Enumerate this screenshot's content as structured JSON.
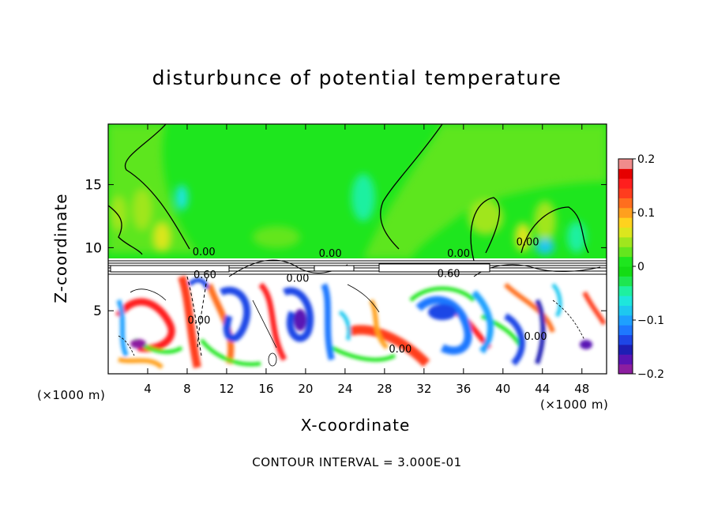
{
  "chart_data": {
    "type": "heatmap",
    "title": "disturbunce of potential temperature",
    "xlabel": "X-coordinate",
    "ylabel": "Z-coordinate",
    "x_unit_left": "(×1000 m)",
    "x_unit_right": "(×1000 m)",
    "xlim": [
      0,
      50.5
    ],
    "ylim": [
      0,
      19.8
    ],
    "x_ticks": [
      4,
      8,
      12,
      16,
      20,
      24,
      28,
      32,
      36,
      40,
      44,
      48
    ],
    "y_ticks": [
      5,
      10,
      15
    ],
    "colorbar": {
      "min": -0.2,
      "max": 0.2,
      "tick_values": [
        0.2,
        0.1,
        0,
        -0.1,
        -0.2
      ],
      "tick_labels": [
        "0.2",
        "0.1",
        "0",
        "−0.1",
        "−0.2"
      ],
      "colors": [
        "#8c1ea0",
        "#5a14b4",
        "#1e1eb4",
        "#1e46e6",
        "#1e78ff",
        "#1ea0ff",
        "#1ec8f0",
        "#1ee6dc",
        "#1ef0a0",
        "#1ee650",
        "#14dc14",
        "#1ee61e",
        "#64e61e",
        "#a0e61e",
        "#dce61e",
        "#ffd21e",
        "#ffa01e",
        "#ff6e1e",
        "#ff3c1e",
        "#ff1e1e",
        "#e60000",
        "#f08c8c"
      ]
    },
    "contour_labels": [
      {
        "text": "0.00",
        "x": 9.7,
        "z": 9.7
      },
      {
        "text": "0.00",
        "x": 22.5,
        "z": 9.6
      },
      {
        "text": "0.00",
        "x": 35.5,
        "z": 9.6
      },
      {
        "text": "0.00",
        "x": 42.5,
        "z": 10.5
      },
      {
        "text": "0.60",
        "x": 9.8,
        "z": 7.9
      },
      {
        "text": "0.00",
        "x": 19.2,
        "z": 7.6
      },
      {
        "text": "0.60",
        "x": 34.5,
        "z": 8.0
      },
      {
        "text": "0.00",
        "x": 9.2,
        "z": 4.3
      },
      {
        "text": "0.00",
        "x": 29.6,
        "z": 2.0
      },
      {
        "text": "0.00",
        "x": 43.3,
        "z": 3.0
      }
    ],
    "contour_interval_text": "CONTOUR INTERVAL = 3.000E-01"
  }
}
